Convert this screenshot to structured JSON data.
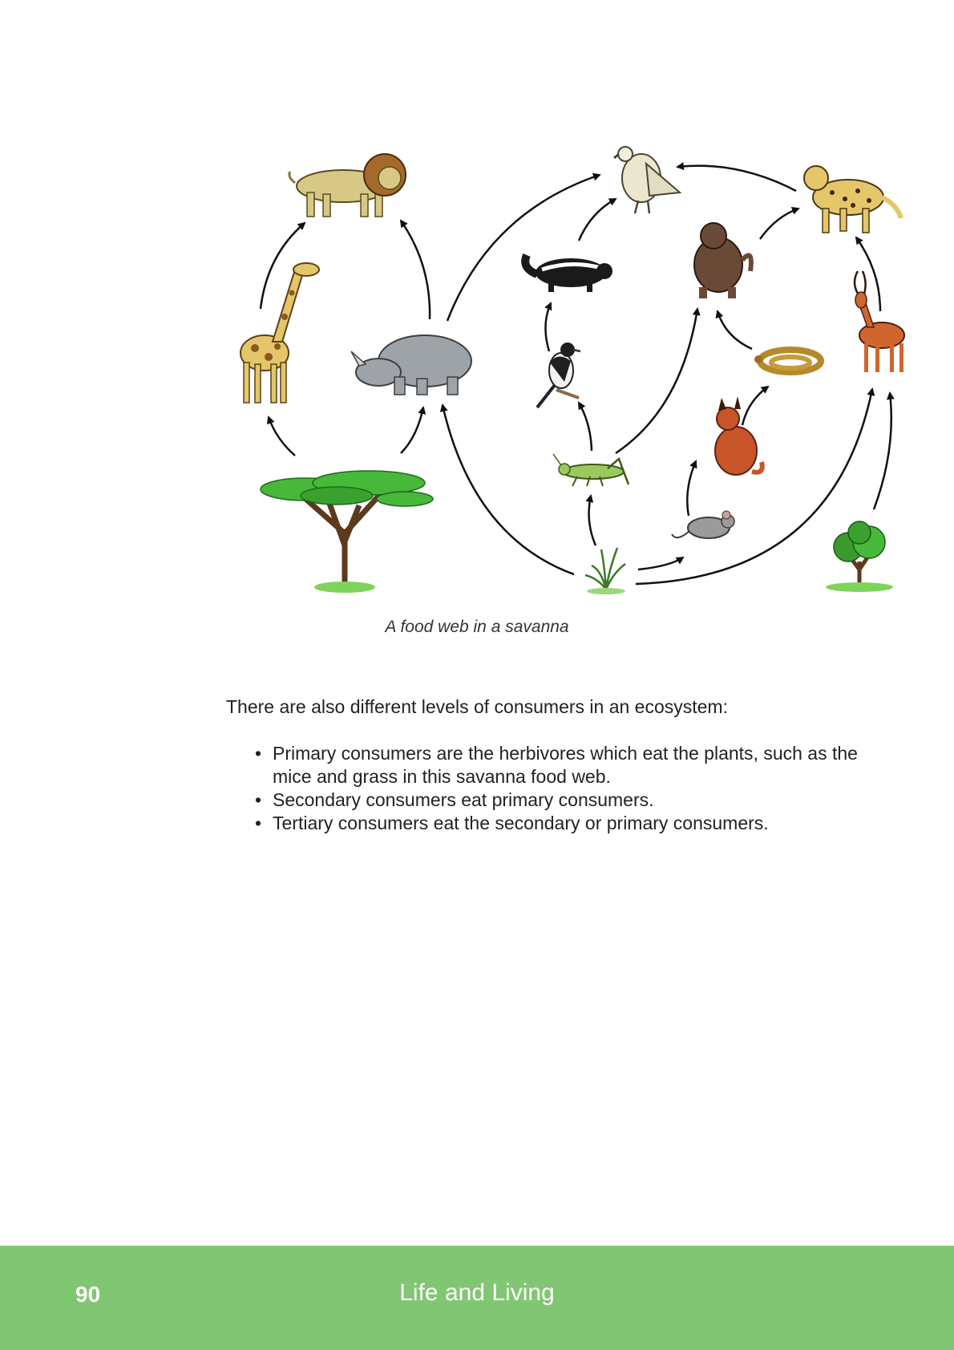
{
  "figure": {
    "caption": "A food web in a savanna",
    "organisms": [
      "lion",
      "giraffe",
      "rhino",
      "acacia-tree",
      "vulture",
      "skunk",
      "bird",
      "grasshopper",
      "grass",
      "baboon",
      "snake",
      "caracal",
      "mouse",
      "cheetah",
      "antelope",
      "bush"
    ]
  },
  "body": {
    "intro": "There are also different levels of consumers in an ecosystem:",
    "bullets": [
      "Primary consumers are the herbivores which eat the plants, such as the mice and grass in this savanna food web.",
      "Secondary consumers eat primary consumers.",
      "Tertiary consumers eat the secondary or primary consumers."
    ]
  },
  "footer": {
    "page_number": "90",
    "title": "Life and Living",
    "color": "#81c672"
  }
}
